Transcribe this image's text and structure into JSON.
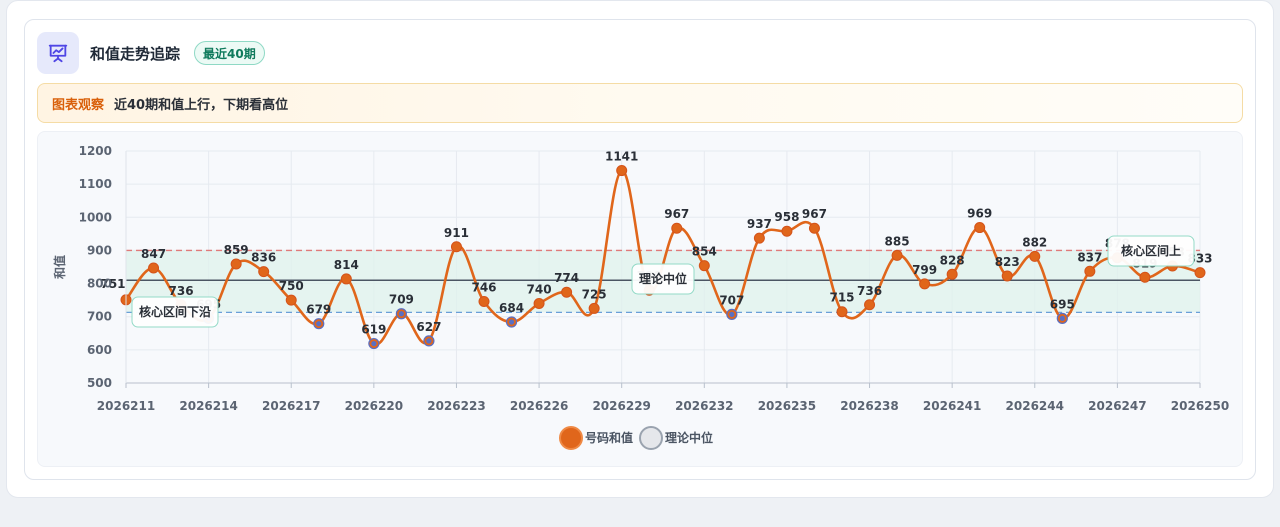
{
  "header": {
    "title": "和值走势追踪",
    "badge": "最近40期",
    "icon": "presentation-chart-icon"
  },
  "observation": {
    "tag": "图表观察",
    "text": "近40期和值上行，下期看高位"
  },
  "colors": {
    "line": "#e0661b",
    "median_line": "#4b5563",
    "band_fill": "#dff2ec",
    "upper_dash": "#e07a7a",
    "lower_dash": "#6a9fd8",
    "low_point": "#5a6fc2"
  },
  "chart_data": {
    "type": "line",
    "ylabel": "和值",
    "ylim": [
      500,
      1200
    ],
    "yticks": [
      500,
      600,
      700,
      800,
      900,
      1000,
      1100,
      1200
    ],
    "xtick_labels": [
      "2026211",
      "2026214",
      "2026217",
      "2026220",
      "2026223",
      "2026226",
      "2026229",
      "2026232",
      "2026235",
      "2026238",
      "2026241",
      "2026244",
      "2026247",
      "2026250"
    ],
    "series": [
      {
        "name": "号码和值",
        "values": [
          751,
          847,
          736,
          695,
          859,
          836,
          750,
          679,
          814,
          619,
          709,
          627,
          911,
          746,
          684,
          740,
          774,
          725,
          1141,
          780,
          967,
          854,
          707,
          937,
          958,
          967,
          715,
          736,
          885,
          799,
          828,
          969,
          823,
          882,
          695,
          837,
          878,
          819,
          853,
          833
        ]
      }
    ],
    "reference_lines": {
      "median": {
        "name": "理论中位",
        "value": 810
      },
      "core_upper": {
        "value": 900
      },
      "core_lower": {
        "name": "核心区间下沿",
        "value": 713
      }
    },
    "annotations": [
      {
        "text": "核心区间下沿",
        "at": "2026211"
      },
      {
        "text": "理论中位",
        "at": "2026231"
      },
      {
        "text": "核心区间上",
        "at": "2026248"
      }
    ],
    "legend": [
      "号码和值",
      "理论中位"
    ],
    "legend_position": "bottom"
  }
}
